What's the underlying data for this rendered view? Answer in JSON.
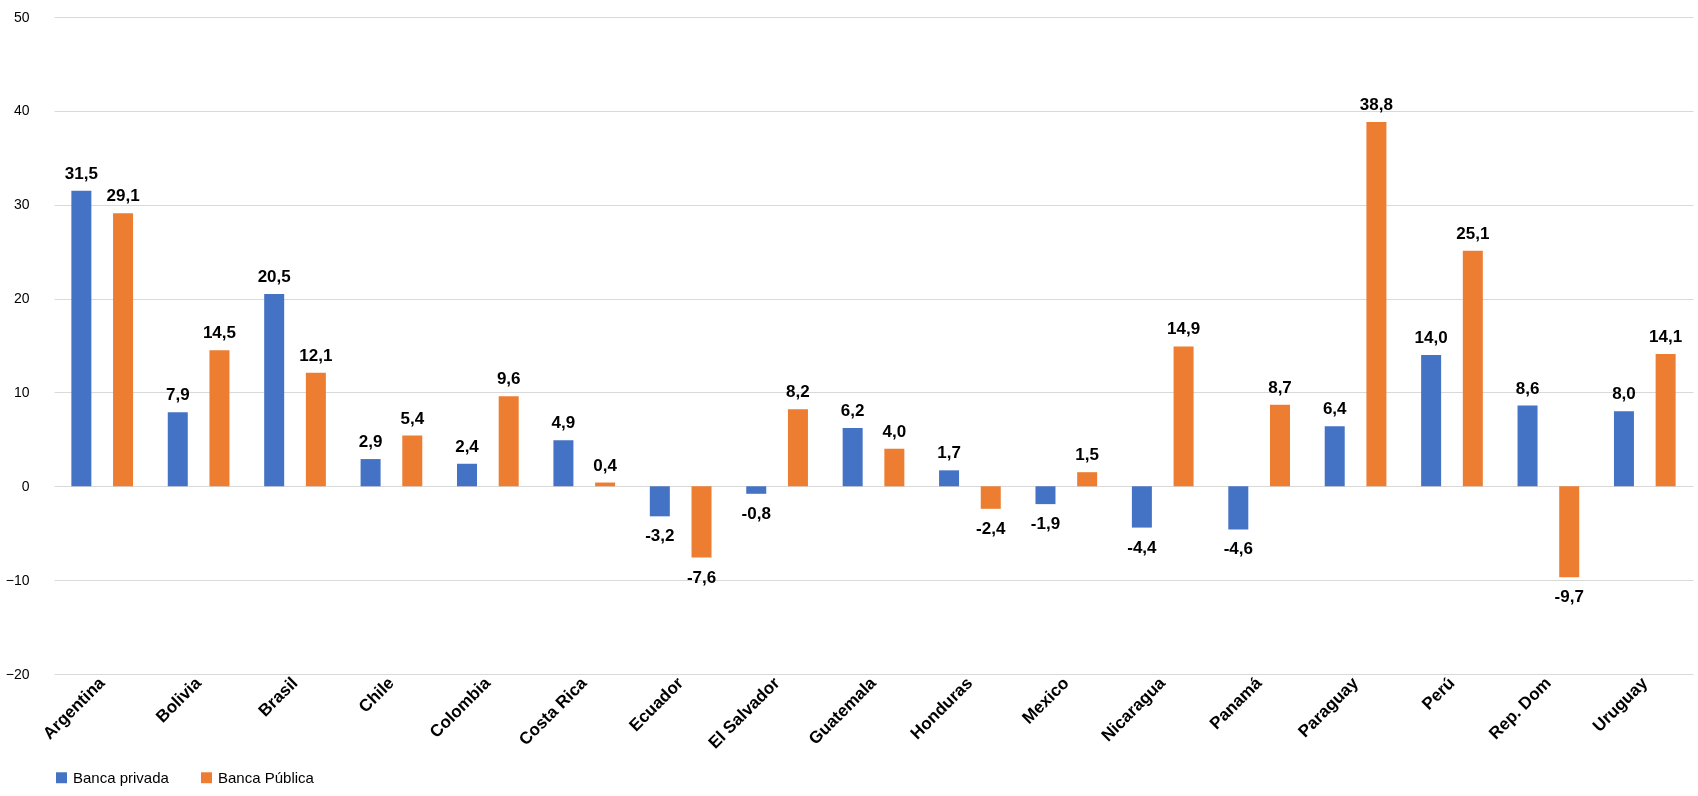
{
  "chart_data": {
    "type": "bar",
    "categories": [
      "Argentina",
      "Bolivia",
      "Brasil",
      "Chile",
      "Colombia",
      "Costa Rica",
      "Ecuador",
      "El Salvador",
      "Guatemala",
      "Honduras",
      "Mexico",
      "Nicaragua",
      "Panamá",
      "Paraguay",
      "Perú",
      "Rep. Dom",
      "Uruguay"
    ],
    "series": [
      {
        "name": "Banca privada",
        "color": "#4472c4",
        "values": [
          31.5,
          7.9,
          20.5,
          2.9,
          2.4,
          4.9,
          -3.2,
          -0.8,
          6.2,
          1.7,
          -1.9,
          -4.4,
          -4.6,
          6.4,
          14.0,
          8.6,
          8.0
        ],
        "value_labels": [
          "31,5",
          "7,9",
          "20,5",
          "2,9",
          "2,4",
          "4,9",
          "-3,2",
          "-0,8",
          "6,2",
          "1,7",
          "-1,9",
          "-4,4",
          "-4,6",
          "6,4",
          "14,0",
          "8,6",
          "8,0"
        ]
      },
      {
        "name": "Banca Pública",
        "color": "#ed7d31",
        "values": [
          29.1,
          14.5,
          12.1,
          5.4,
          9.6,
          0.4,
          -7.6,
          8.2,
          4.0,
          -2.4,
          1.5,
          14.9,
          8.7,
          38.8,
          25.1,
          -9.7,
          14.1
        ],
        "value_labels": [
          "29,1",
          "14,5",
          "12,1",
          "5,4",
          "9,6",
          "0,4",
          "-7,6",
          "8,2",
          "4,0",
          "-2,4",
          "1,5",
          "14,9",
          "8,7",
          "38,8",
          "25,1",
          "-9,7",
          "14,1"
        ]
      }
    ],
    "ylim": [
      -20,
      50
    ],
    "yticks": [
      -20,
      -10,
      0,
      10,
      20,
      30,
      40,
      50
    ],
    "grid": "y",
    "legend": "bottom"
  }
}
